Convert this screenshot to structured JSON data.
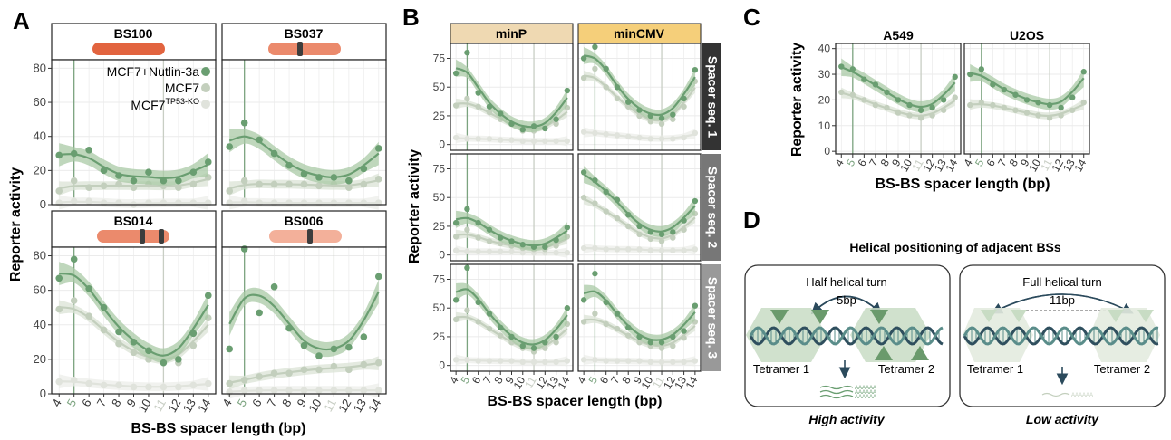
{
  "colors": {
    "nutlin": "#6a9e71",
    "mcf7": "#c3cfbd",
    "ko": "#e0e3dc",
    "band_nutlin": "#a9c9a5",
    "band_mcf7": "#dbe3d5",
    "grid": "#ebebeb",
    "strip_a": "#ffffff",
    "strip_minp": "#efd9b2",
    "strip_mincmv": "#f5cf7a",
    "strip_b_right": "#333333",
    "strip_b_right2": "#777777",
    "strip_b_right3": "#999999",
    "bar_dark": "#e2643f",
    "bar_mid": "#eb8a6c",
    "bar_light": "#f3b09a",
    "site_mark": "#3d3d3d",
    "ruler5": "#7ba37f",
    "ruler11": "#c8cec4",
    "dna_dark": "#2f4f5e",
    "dna_mid": "#5a8d8a",
    "tri_dark": "#6a9a6c",
    "tri_light": "#c8dcc4",
    "arrow": "#2b4a5c"
  },
  "panels": {
    "A": {
      "letter": "A",
      "xlabel": "BS-BS spacer length (bp)",
      "ylabel": "Reporter activity",
      "legend": {
        "nutlin": "MCF7+Nutlin-3a",
        "mcf7": "MCF7",
        "ko_base": "MCF7",
        "ko_sup": "TP53-KO"
      },
      "facets": [
        "BS100",
        "BS037",
        "BS014",
        "BS006"
      ]
    },
    "B": {
      "letter": "B",
      "xlabel": "BS-BS spacer length (bp)",
      "ylabel": "Reporter activity",
      "cols": [
        "minP",
        "minCMV"
      ],
      "rows": [
        "Spacer seq. 1",
        "Spacer seq. 2",
        "Spacer seq. 3"
      ]
    },
    "C": {
      "letter": "C",
      "xlabel": "BS-BS spacer length (bp)",
      "ylabel": "Reporter activity",
      "cols": [
        "A549",
        "U2OS"
      ]
    },
    "D": {
      "letter": "D",
      "title": "Helical positioning of adjacent BSs",
      "left": {
        "turn": "Half helical turn",
        "bp": "5bp",
        "t1": "Tetramer 1",
        "t2": "Tetramer 2",
        "caption": "High activity",
        "mrna": "AAAAAA"
      },
      "right": {
        "turn": "Full helical turn",
        "bp": "11bp",
        "t1": "Tetramer 1",
        "t2": "Tetramer 2",
        "caption": "Low activity",
        "mrna": "AAAAAA"
      }
    }
  },
  "chart_data": [
    {
      "panel": "A",
      "type": "line",
      "facets": [
        "BS100",
        "BS037",
        "BS014",
        "BS006"
      ],
      "x": [
        4,
        5,
        6,
        7,
        8,
        9,
        10,
        11,
        12,
        13,
        14
      ],
      "xticks": [
        "4",
        "5",
        "6",
        "7",
        "8",
        "9",
        "10",
        "11",
        "12",
        "13",
        "14"
      ],
      "ylim": [
        0,
        85
      ],
      "yticks": [
        0,
        20,
        40,
        60,
        80
      ],
      "series_names": [
        "MCF7+Nutlin-3a",
        "MCF7",
        "MCF7 TP53-KO"
      ],
      "data": {
        "BS100": {
          "nutlin": [
            29,
            30,
            32,
            20,
            17,
            14,
            19,
            14,
            14,
            19,
            25
          ],
          "mcf7": [
            8,
            14,
            10,
            11,
            12,
            10,
            12,
            11,
            10,
            12,
            16
          ],
          "ko": [
            1,
            2,
            2,
            1,
            1,
            0,
            1,
            1,
            1,
            1,
            1
          ]
        },
        "BS037": {
          "nutlin": [
            34,
            48,
            38,
            30,
            23,
            18,
            16,
            16,
            14,
            21,
            33
          ],
          "mcf7": [
            8,
            14,
            12,
            12,
            12,
            12,
            11,
            12,
            10,
            12,
            15
          ],
          "ko": [
            1,
            2,
            1,
            1,
            1,
            1,
            1,
            1,
            1,
            1,
            1
          ]
        },
        "BS014": {
          "nutlin": [
            67,
            78,
            61,
            50,
            36,
            30,
            25,
            18,
            20,
            35,
            57
          ],
          "mcf7": [
            49,
            54,
            45,
            37,
            29,
            24,
            20,
            19,
            18,
            28,
            44
          ],
          "ko": [
            7,
            8,
            6,
            5,
            5,
            4,
            4,
            4,
            4,
            5,
            6
          ]
        },
        "BS006": {
          "nutlin": [
            26,
            84,
            47,
            62,
            38,
            28,
            22,
            26,
            27,
            33,
            68
          ],
          "mcf7": [
            6,
            8,
            10,
            12,
            12,
            14,
            14,
            16,
            14,
            17,
            18
          ],
          "ko": [
            1,
            2,
            2,
            2,
            2,
            2,
            2,
            2,
            2,
            2,
            2
          ]
        }
      }
    },
    {
      "panel": "B",
      "type": "line",
      "cols": [
        "minP",
        "minCMV"
      ],
      "rows": [
        "Spacer seq. 1",
        "Spacer seq. 2",
        "Spacer seq. 3"
      ],
      "x": [
        4,
        5,
        6,
        7,
        8,
        9,
        10,
        11,
        12,
        13,
        14
      ],
      "xticks": [
        "4",
        "5",
        "6",
        "7",
        "8",
        "9",
        "10",
        "11",
        "12",
        "13",
        "14"
      ],
      "ylim": [
        -5,
        88
      ],
      "yticks": [
        0,
        25,
        50,
        75
      ],
      "series_names": [
        "MCF7+Nutlin-3a",
        "MCF7",
        "MCF7 TP53-KO"
      ],
      "data": {
        "minP_1": {
          "nutlin": [
            62,
            80,
            45,
            33,
            27,
            18,
            13,
            16,
            14,
            22,
            47
          ],
          "mcf7": [
            34,
            40,
            33,
            28,
            22,
            18,
            12,
            12,
            14,
            18,
            32
          ],
          "ko": [
            6,
            5,
            5,
            5,
            4,
            4,
            3,
            3,
            3,
            3,
            3
          ]
        },
        "minCMV_1": {
          "nutlin": [
            75,
            85,
            66,
            50,
            37,
            30,
            25,
            23,
            26,
            40,
            65
          ],
          "mcf7": [
            58,
            66,
            50,
            40,
            33,
            25,
            20,
            18,
            22,
            33,
            55
          ],
          "ko": [
            11,
            10,
            9,
            8,
            7,
            6,
            5,
            5,
            5,
            6,
            10
          ]
        },
        "minP_2": {
          "nutlin": [
            28,
            40,
            28,
            22,
            15,
            12,
            9,
            7,
            7,
            13,
            24
          ],
          "mcf7": [
            16,
            22,
            15,
            12,
            10,
            8,
            6,
            5,
            5,
            8,
            16
          ],
          "ko": [
            4,
            3,
            3,
            3,
            3,
            3,
            2,
            2,
            2,
            2,
            2
          ]
        },
        "minCMV_2": {
          "nutlin": [
            72,
            65,
            55,
            48,
            35,
            25,
            20,
            18,
            20,
            30,
            47
          ],
          "mcf7": [
            50,
            45,
            38,
            32,
            25,
            18,
            14,
            12,
            15,
            22,
            36
          ],
          "ko": [
            6,
            6,
            5,
            5,
            5,
            5,
            4,
            4,
            4,
            4,
            5
          ]
        },
        "minP_3": {
          "nutlin": [
            57,
            85,
            55,
            45,
            33,
            25,
            17,
            15,
            20,
            25,
            50
          ],
          "mcf7": [
            40,
            48,
            38,
            32,
            26,
            20,
            15,
            12,
            15,
            20,
            36
          ],
          "ko": [
            5,
            5,
            4,
            4,
            4,
            4,
            3,
            3,
            3,
            3,
            4
          ]
        },
        "minCMV_3": {
          "nutlin": [
            57,
            80,
            55,
            45,
            33,
            25,
            20,
            20,
            25,
            30,
            52
          ],
          "mcf7": [
            38,
            45,
            36,
            32,
            26,
            20,
            17,
            15,
            17,
            24,
            38
          ],
          "ko": [
            5,
            5,
            4,
            4,
            4,
            4,
            3,
            3,
            3,
            3,
            4
          ]
        }
      }
    },
    {
      "panel": "C",
      "type": "line",
      "cols": [
        "A549",
        "U2OS"
      ],
      "x": [
        4,
        5,
        6,
        7,
        8,
        9,
        10,
        11,
        12,
        13,
        14
      ],
      "xticks": [
        "4",
        "5",
        "6",
        "7",
        "8",
        "9",
        "10",
        "11",
        "12",
        "13",
        "14"
      ],
      "ylim": [
        -1,
        42
      ],
      "yticks": [
        0,
        10,
        20,
        30,
        40
      ],
      "series_names": [
        "MCF7+Nutlin-3a",
        "MCF7"
      ],
      "data": {
        "A549": {
          "nutlin": [
            33,
            32,
            28,
            26,
            23,
            20,
            18,
            16,
            17,
            20,
            29
          ],
          "mcf7": [
            23,
            22,
            20,
            18,
            17,
            15,
            14,
            13,
            14,
            16,
            21
          ]
        },
        "U2OS": {
          "nutlin": [
            30,
            32,
            26,
            24,
            22,
            20,
            19,
            18,
            17,
            21,
            31
          ],
          "mcf7": [
            18,
            19,
            18,
            17,
            16,
            15,
            14,
            13,
            14,
            16,
            19
          ]
        }
      }
    }
  ]
}
